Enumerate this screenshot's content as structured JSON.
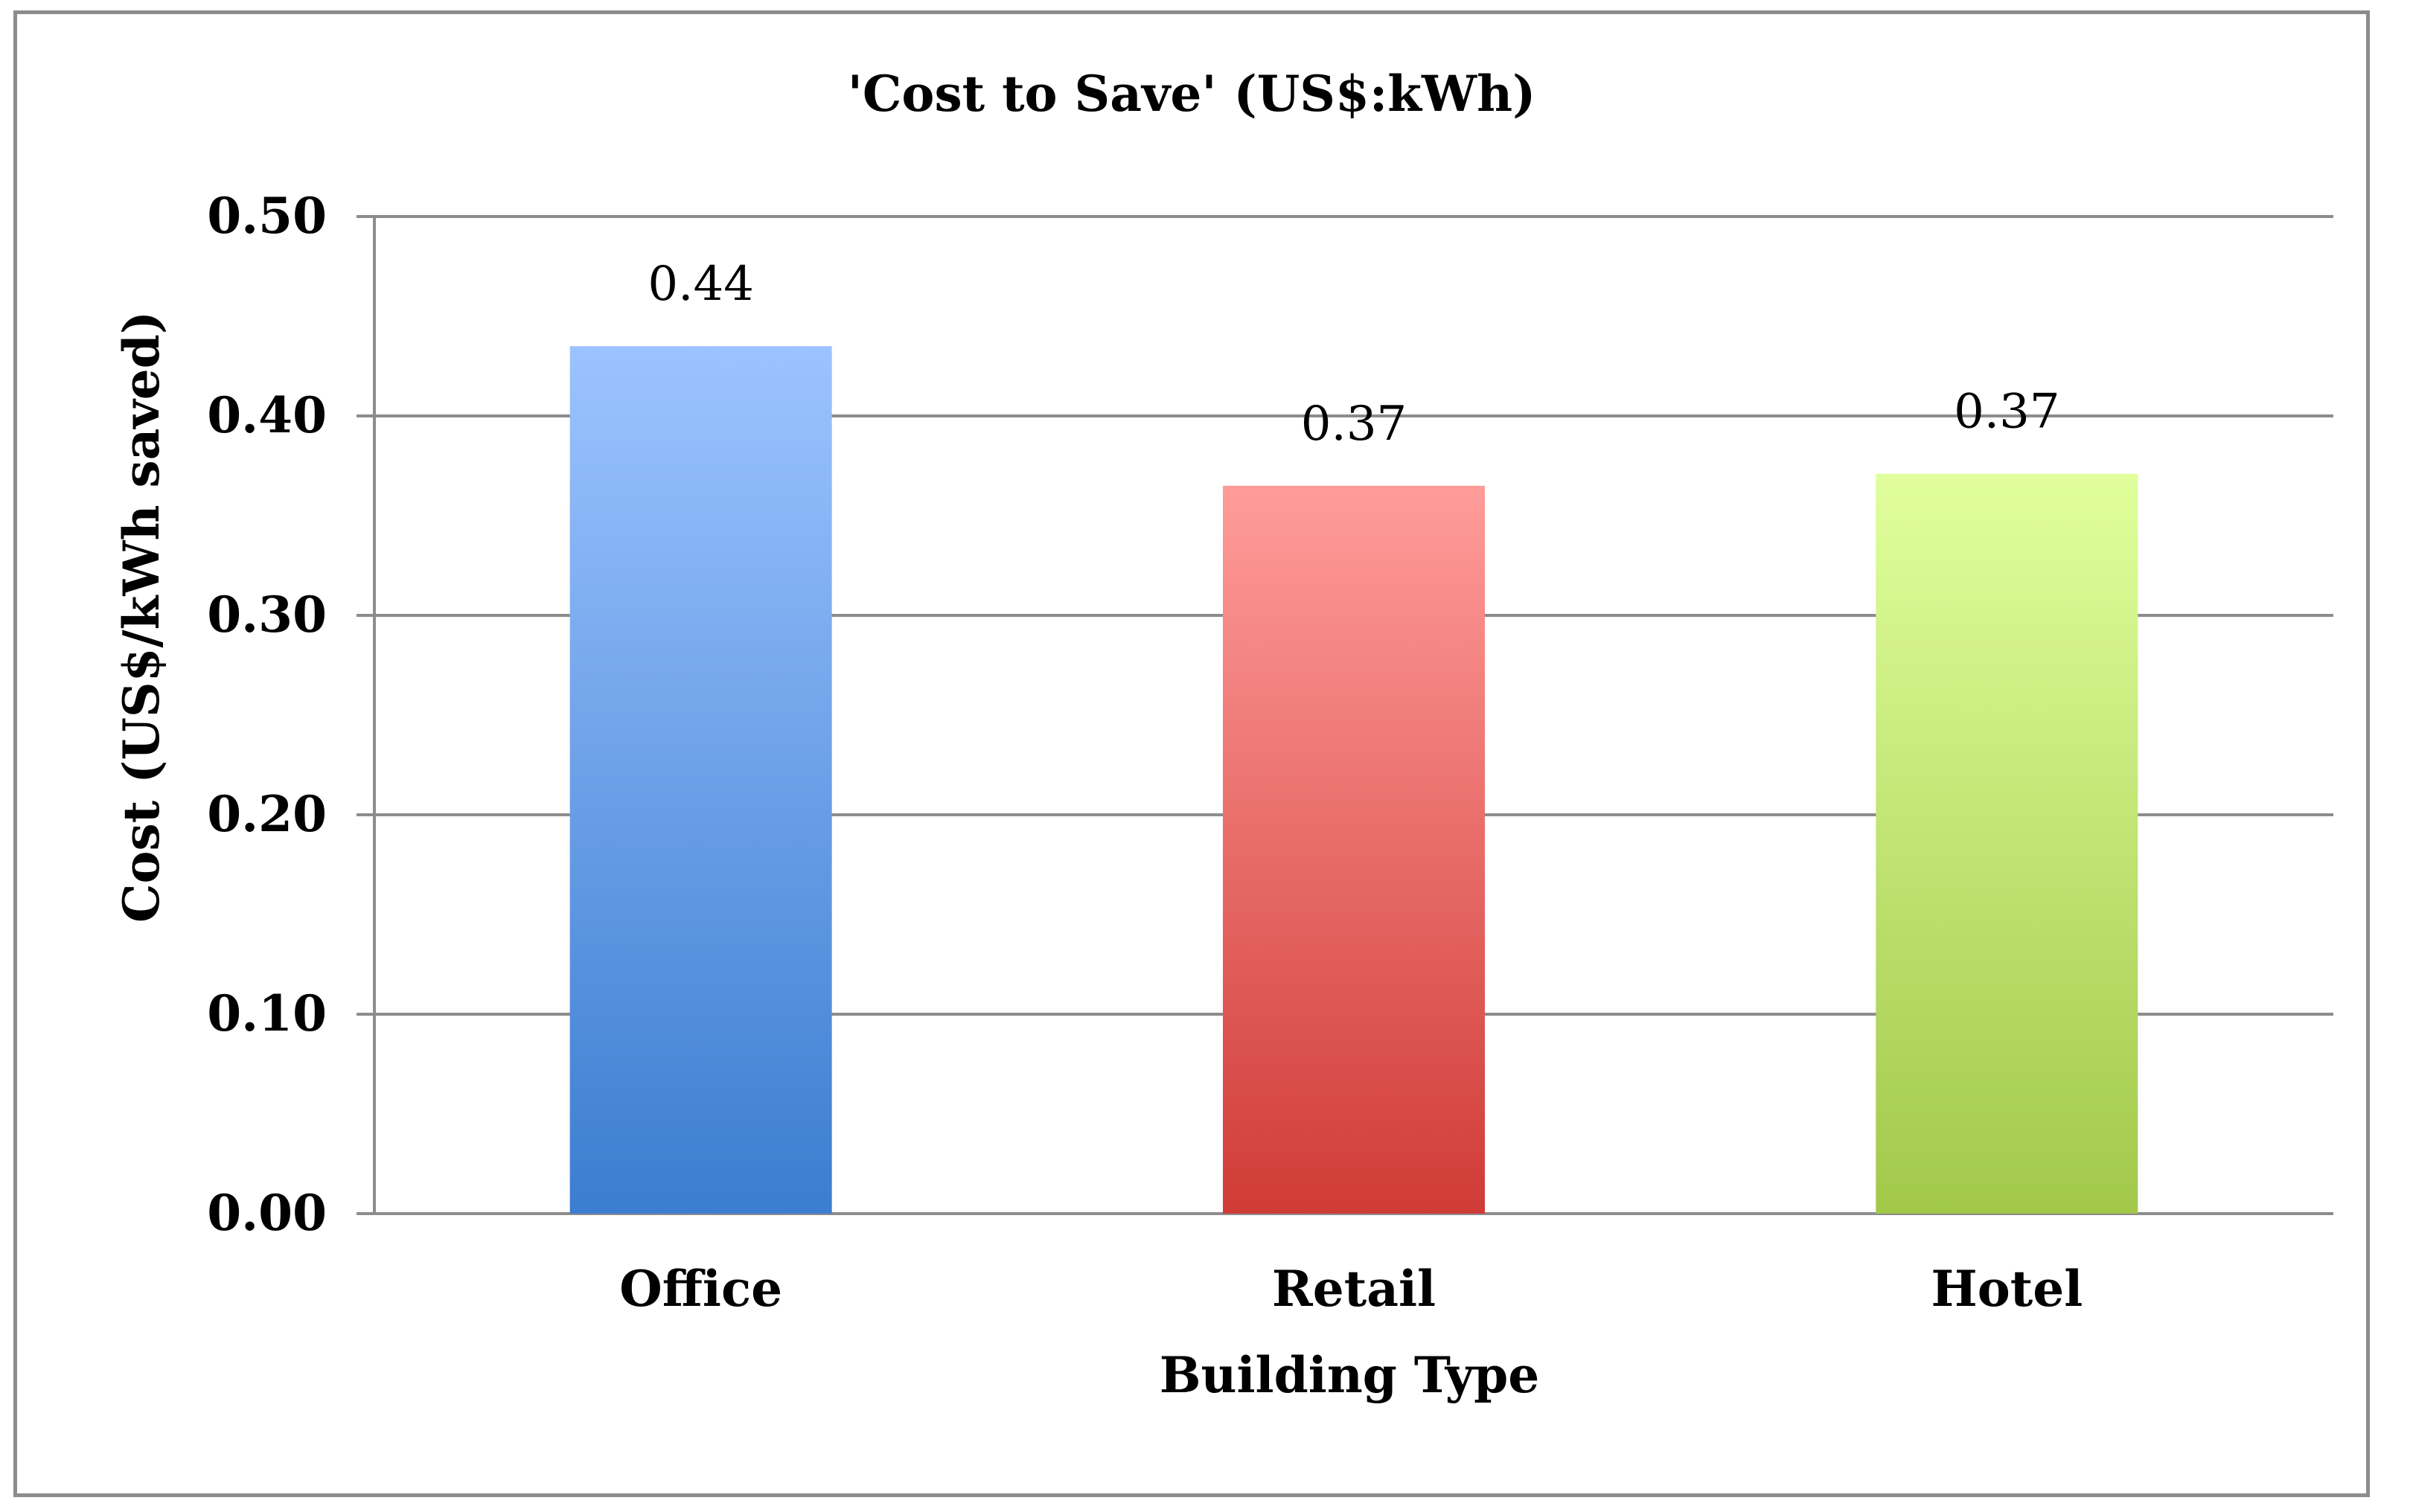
{
  "chart_data": {
    "type": "bar",
    "title": "'Cost to Save' (US$:kWh)",
    "xlabel": "Building Type",
    "ylabel": "Cost (US$/kWh saved)",
    "categories": [
      "Office",
      "Retail",
      "Hotel"
    ],
    "values": [
      0.435,
      0.365,
      0.371
    ],
    "data_labels": [
      "0.44",
      "0.37",
      "0.37"
    ],
    "ylim": [
      0,
      0.5
    ],
    "yticks": [
      0.0,
      0.1,
      0.2,
      0.3,
      0.4,
      0.5
    ],
    "ytick_labels": [
      "0.00",
      "0.10",
      "0.20",
      "0.30",
      "0.40",
      "0.50"
    ],
    "grid": true,
    "legend": "none",
    "colors": [
      {
        "top": "#9cc3ff",
        "bottom": "#3b7dd0"
      },
      {
        "top": "#ff9c9a",
        "bottom": "#d03b37"
      },
      {
        "top": "#e0ff9c",
        "bottom": "#a2c84a"
      }
    ]
  }
}
